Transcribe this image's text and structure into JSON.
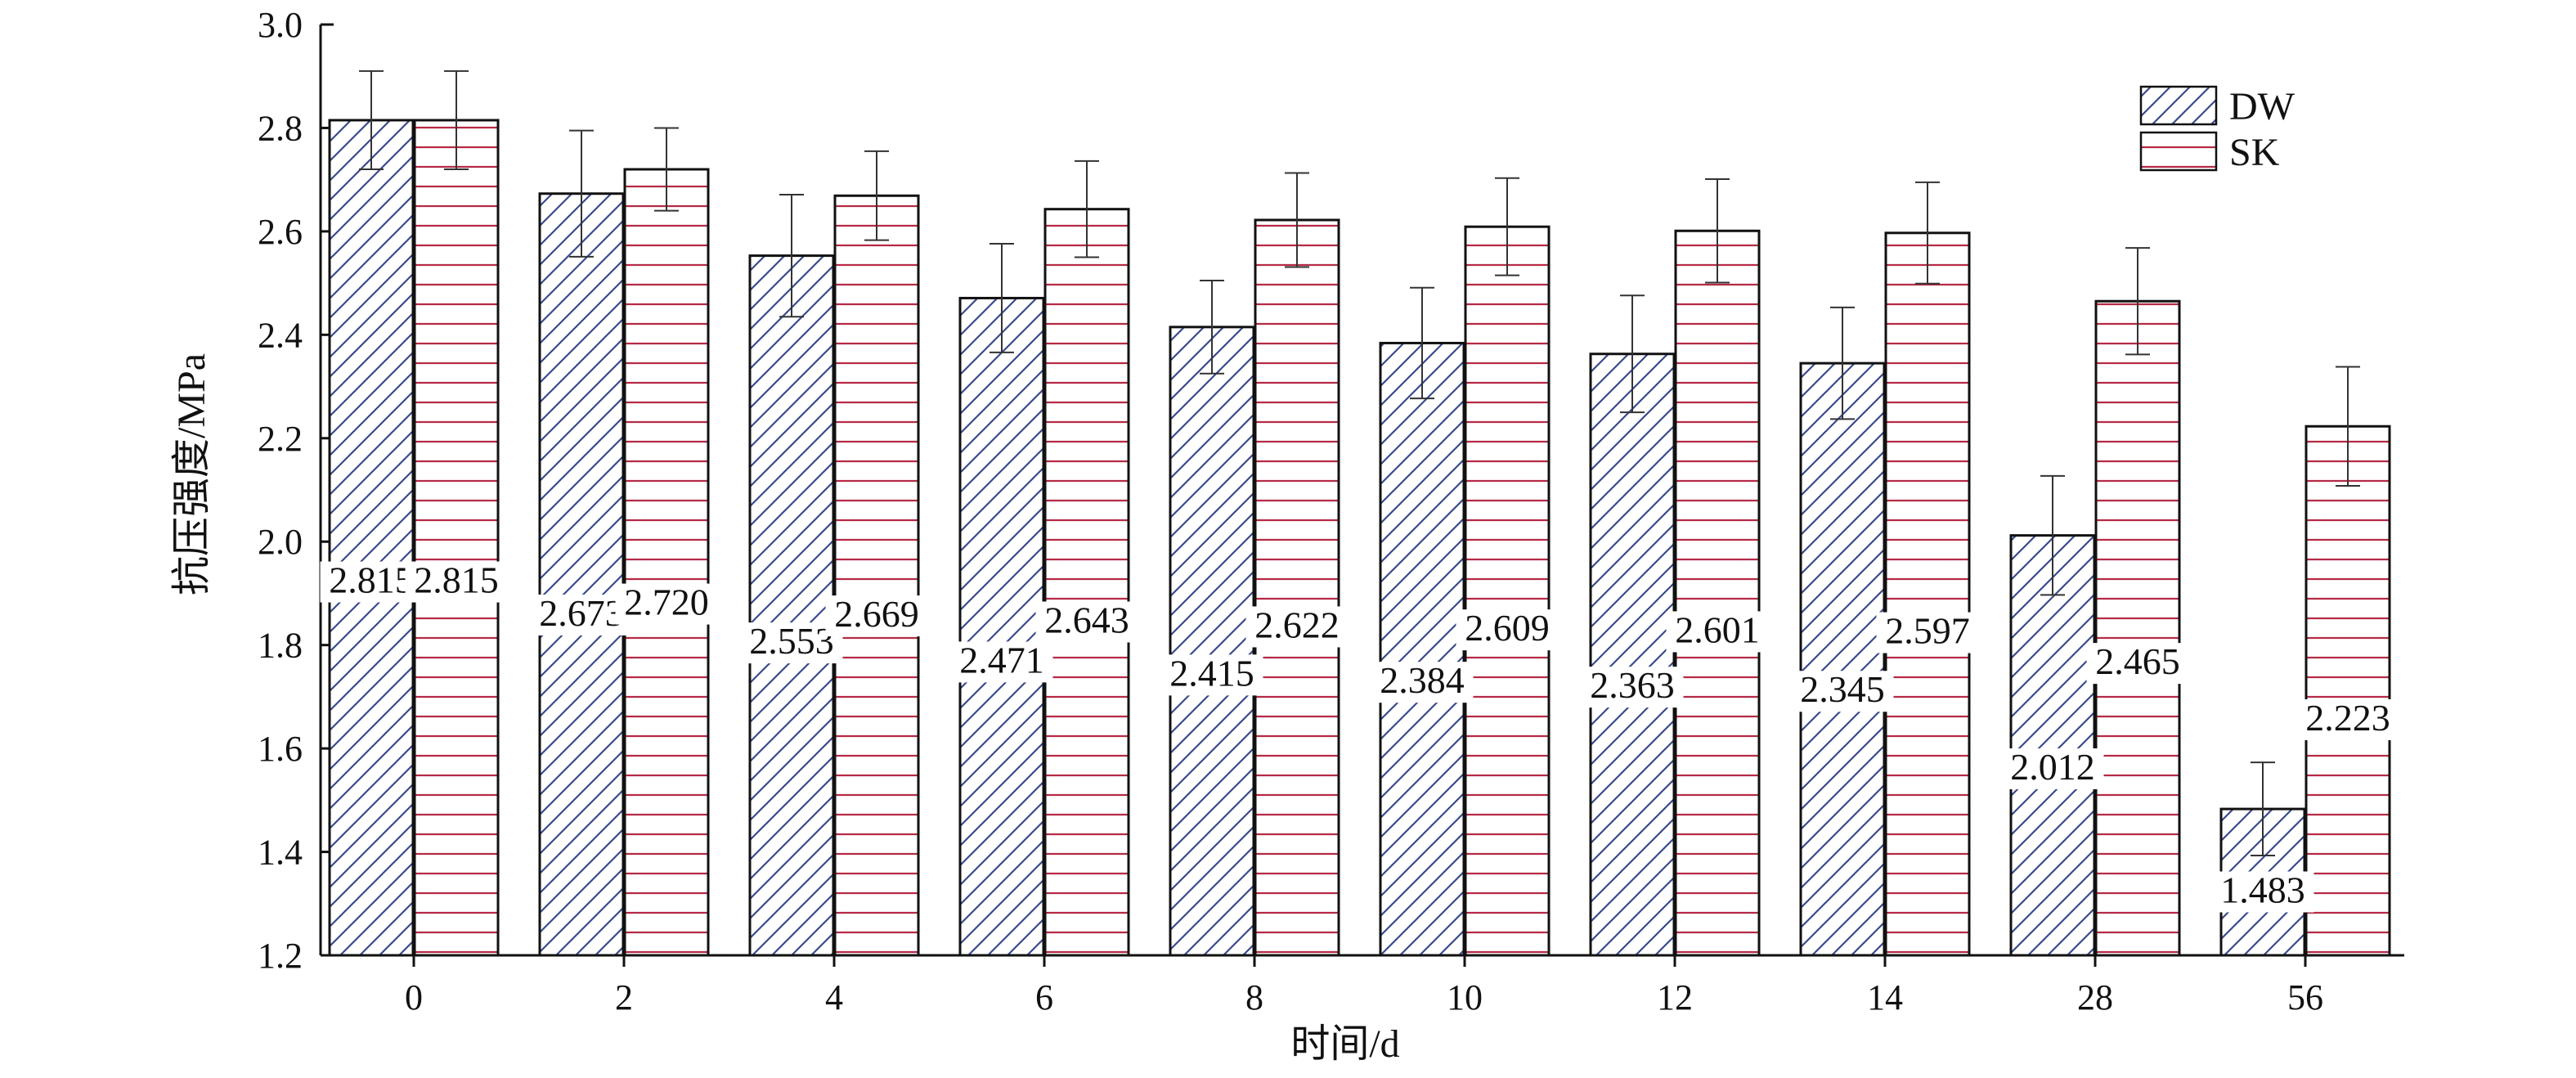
{
  "chart_data": {
    "type": "bar",
    "xlabel": "时间/d",
    "ylabel": "抗压强度/MPa",
    "categories": [
      "0",
      "2",
      "4",
      "6",
      "8",
      "10",
      "12",
      "14",
      "28",
      "56"
    ],
    "ylim": [
      1.2,
      3.0
    ],
    "yticks": [
      "1.2",
      "1.4",
      "1.6",
      "1.8",
      "2.0",
      "2.2",
      "2.4",
      "2.6",
      "2.8",
      "3.0"
    ],
    "legend_position": "top-right",
    "grid": false,
    "series": [
      {
        "name": "DW",
        "values": [
          2.815,
          2.673,
          2.553,
          2.471,
          2.415,
          2.384,
          2.363,
          2.345,
          2.012,
          1.483
        ],
        "labels": [
          "2.815",
          "2.673",
          "2.553",
          "2.471",
          "2.415",
          "2.384",
          "2.363",
          "2.345",
          "2.012",
          "1.483"
        ],
        "errors": [
          0.095,
          0.122,
          0.118,
          0.105,
          0.09,
          0.107,
          0.113,
          0.108,
          0.115,
          0.09
        ],
        "pattern": "diagonal-hatch",
        "color": "#3a4a8c"
      },
      {
        "name": "SK",
        "values": [
          2.815,
          2.72,
          2.669,
          2.643,
          2.622,
          2.609,
          2.601,
          2.597,
          2.465,
          2.223
        ],
        "labels": [
          "2.815",
          "2.720",
          "2.669",
          "2.643",
          "2.622",
          "2.609",
          "2.601",
          "2.597",
          "2.465",
          "2.223"
        ],
        "errors": [
          0.095,
          0.08,
          0.086,
          0.093,
          0.091,
          0.094,
          0.1,
          0.098,
          0.103,
          0.115
        ],
        "pattern": "horizontal-lines",
        "color": "#b52a45"
      }
    ]
  }
}
